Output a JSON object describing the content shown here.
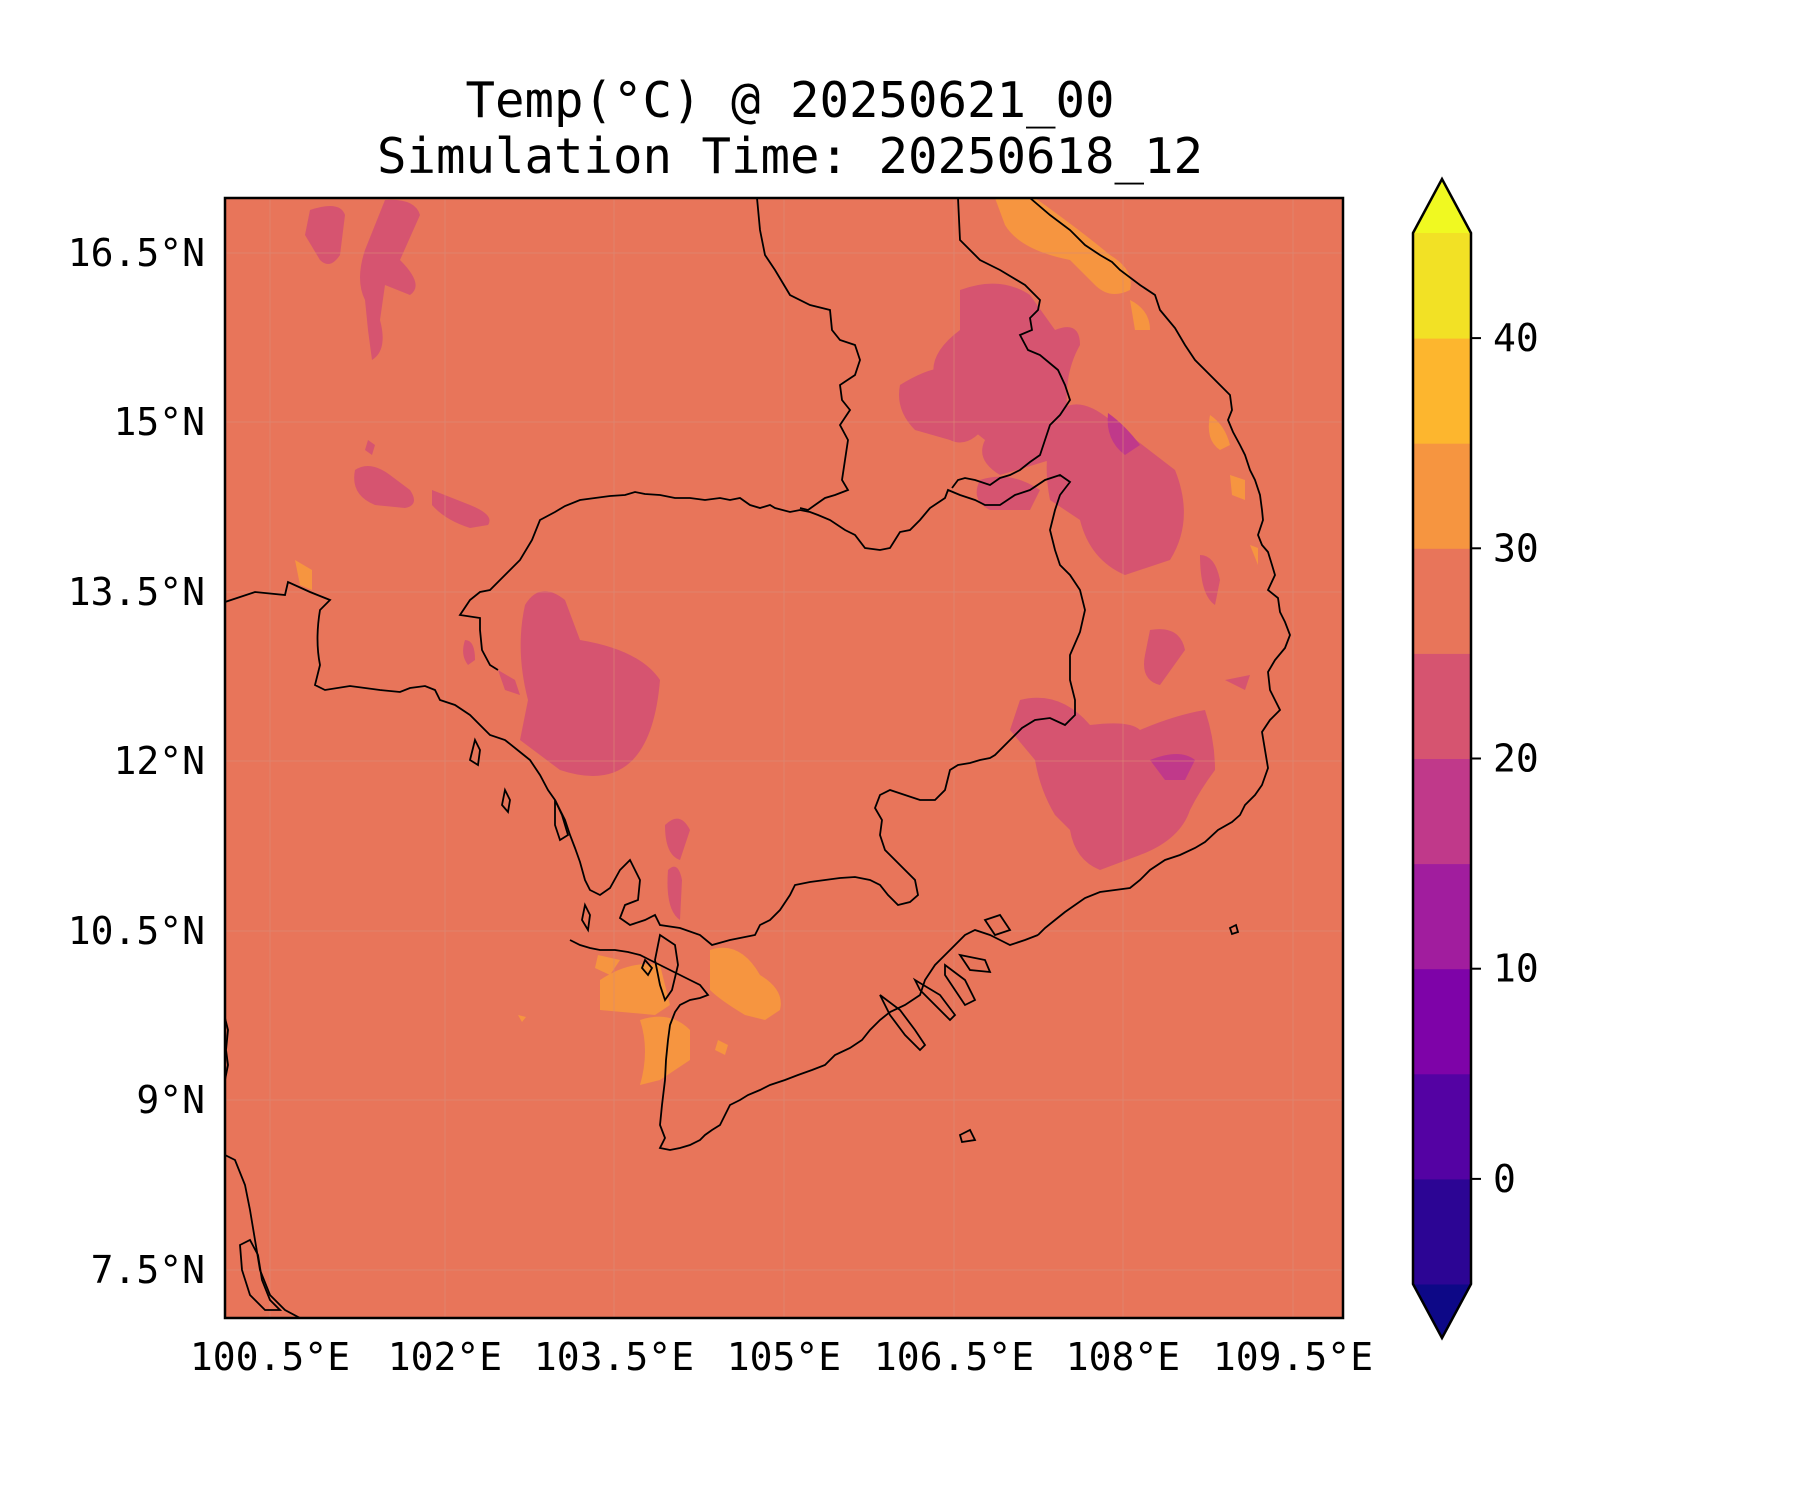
{
  "title": {
    "line1": "Temp(°C) @ 20250621_00",
    "line2": "Simulation Time: 20250618_12"
  },
  "map": {
    "background_color": "#e8755a",
    "gridline_color": "#d98a78",
    "coastline_color": "#000000",
    "x_ticks": [
      "100.5°E",
      "102°E",
      "103.5°E",
      "105°E",
      "106.5°E",
      "108°E",
      "109.5°E"
    ],
    "y_ticks": [
      "16.5°N",
      "15°N",
      "13.5°N",
      "12°N",
      "10.5°N",
      "9°N",
      "7.5°N"
    ]
  },
  "colorbar": {
    "extend": "both",
    "tick_labels": [
      "40",
      "30",
      "20",
      "10",
      "0"
    ],
    "bands": [
      {
        "range": "< -5",
        "color": "#0d0887"
      },
      {
        "range": "-5 to 0",
        "color": "#2c0594"
      },
      {
        "range": "0 to 5",
        "color": "#5402a3"
      },
      {
        "range": "5 to 10",
        "color": "#7e03a8"
      },
      {
        "range": "10 to 15",
        "color": "#a11d9e"
      },
      {
        "range": "15 to 20",
        "color": "#c0398a"
      },
      {
        "range": "20 to 25",
        "color": "#d65470"
      },
      {
        "range": "25 to 30",
        "color": "#e8755a"
      },
      {
        "range": "30 to 35",
        "color": "#f69540"
      },
      {
        "range": "35 to 40",
        "color": "#fdb62e"
      },
      {
        "range": "40 to 45",
        "color": "#f2e125"
      },
      {
        "range": "> 45",
        "color": "#f0f921"
      }
    ]
  }
}
